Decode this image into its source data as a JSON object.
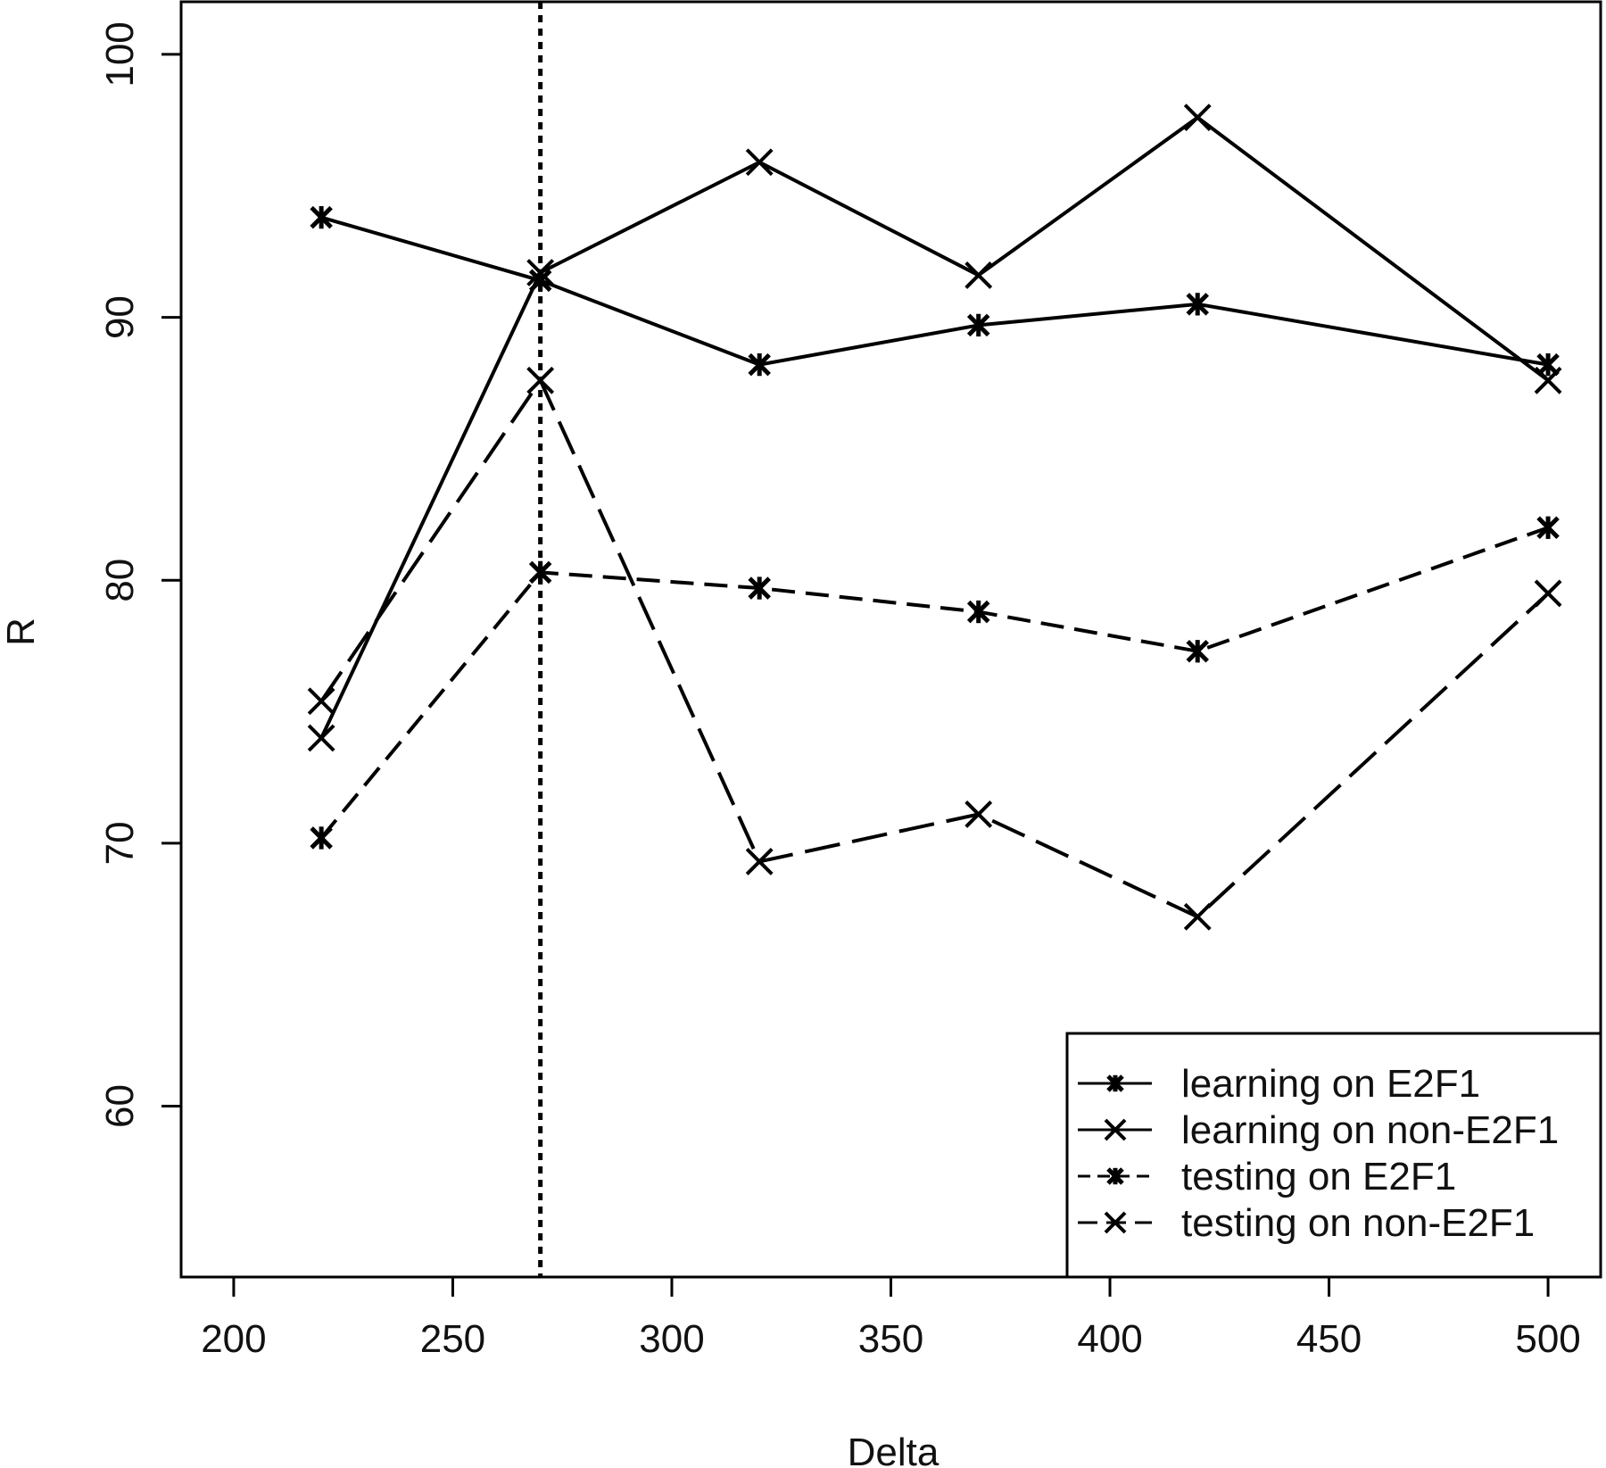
{
  "chart_data": {
    "type": "line",
    "title": "",
    "xlabel": "Delta",
    "ylabel": "R",
    "xlim": [
      188,
      512
    ],
    "ylim": [
      53.5,
      102
    ],
    "x_ticks": [
      200,
      250,
      300,
      350,
      400,
      450,
      500
    ],
    "y_ticks": [
      60,
      70,
      80,
      90,
      100
    ],
    "x": [
      220,
      270,
      320,
      370,
      420,
      500
    ],
    "reference_line": {
      "x": 270,
      "style": "dotted"
    },
    "grid": false,
    "legend": {
      "position": "bottom-right"
    },
    "series": [
      {
        "name": "learning on E2F1",
        "line": "solid",
        "marker": "asterisk",
        "values": [
          93.8,
          91.4,
          88.2,
          89.7,
          90.5,
          88.2
        ]
      },
      {
        "name": "learning on non-E2F1",
        "line": "solid",
        "marker": "cross",
        "values": [
          74.0,
          91.7,
          95.9,
          91.6,
          97.6,
          87.6
        ]
      },
      {
        "name": "testing on E2F1",
        "line": "dashed",
        "marker": "asterisk",
        "values": [
          70.2,
          80.3,
          79.7,
          78.8,
          77.3,
          82.0
        ]
      },
      {
        "name": "testing on non-E2F1",
        "line": "longdash",
        "marker": "cross",
        "values": [
          75.4,
          87.6,
          69.3,
          71.1,
          67.2,
          79.5
        ]
      }
    ]
  }
}
